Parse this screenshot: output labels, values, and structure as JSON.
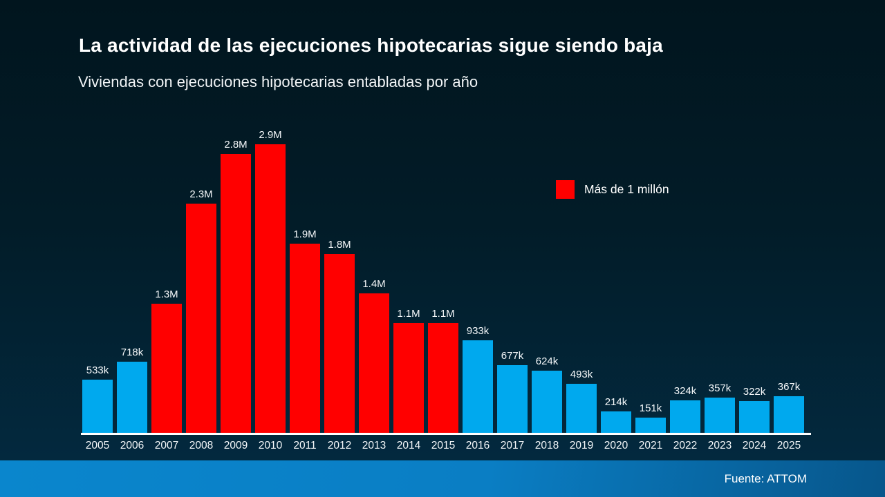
{
  "slide": {
    "title": "La actividad de las ejecuciones hipotecarias sigue siendo baja",
    "subtitle": "Viviendas con ejecuciones hipotecarias entabladas por año",
    "source": "Fuente: ATTOM"
  },
  "legend": {
    "label": "Más de 1 millón",
    "color": "#ff0000"
  },
  "colors": {
    "bar_above_threshold": "#ff0000",
    "bar_below_threshold": "#00a9ee",
    "axis": "#ffffff",
    "text": "#ffffff",
    "background_top": "#01151e",
    "background_bottom": "#032a40",
    "footer_left": "#0a86cd",
    "footer_right": "#07568b"
  },
  "chart_data": {
    "type": "bar",
    "title": "La actividad de las ejecuciones hipotecarias sigue siendo baja",
    "subtitle": "Viviendas con ejecuciones hipotecarias entabladas por año",
    "xlabel": "",
    "ylabel": "",
    "grid": false,
    "legend_position": "upper-right",
    "legend": [
      {
        "label": "Más de 1 millón",
        "color": "#ff0000"
      }
    ],
    "threshold": 1000000,
    "ylim": [
      0,
      2900000
    ],
    "categories": [
      "2005",
      "2006",
      "2007",
      "2008",
      "2009",
      "2010",
      "2011",
      "2012",
      "2013",
      "2014",
      "2015",
      "2016",
      "2017",
      "2018",
      "2019",
      "2020",
      "2021",
      "2022",
      "2023",
      "2024",
      "2025"
    ],
    "values": [
      533000,
      718000,
      1300000,
      2300000,
      2800000,
      2900000,
      1900000,
      1800000,
      1400000,
      1100000,
      1100000,
      933000,
      677000,
      624000,
      493000,
      214000,
      151000,
      324000,
      357000,
      322000,
      367000
    ],
    "value_labels": [
      "533k",
      "718k",
      "1.3M",
      "2.3M",
      "2.8M",
      "2.9M",
      "1.9M",
      "1.8M",
      "1.4M",
      "1.1M",
      "1.1M",
      "933k",
      "677k",
      "624k",
      "493k",
      "214k",
      "151k",
      "324k",
      "357k",
      "322k",
      "367k"
    ]
  }
}
